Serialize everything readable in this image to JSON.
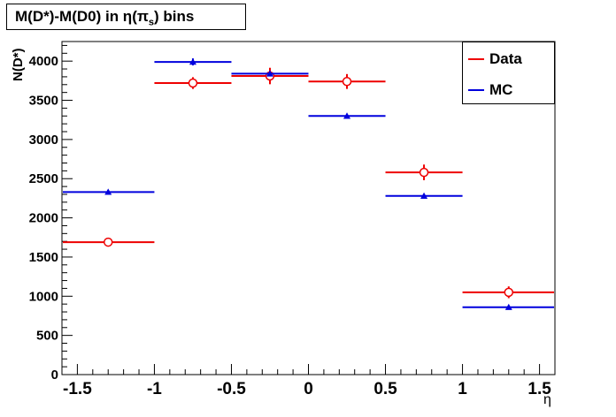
{
  "chart_data": {
    "type": "scatter",
    "title": "M(D*)-M(D0) in  η(πs) bins",
    "title_main": "M(D*)-M(D0) in  η(π",
    "title_sub": "s",
    "title_end": ") bins",
    "xlabel": "η",
    "ylabel": "N(D*)",
    "xlim": [
      -1.6,
      1.6
    ],
    "ylim": [
      0,
      4250
    ],
    "x_ticks": [
      "-1.5",
      "-1",
      "-0.5",
      "0",
      "0.5",
      "1",
      "1.5"
    ],
    "x_tick_values": [
      -1.5,
      -1,
      -0.5,
      0,
      0.5,
      1,
      1.5
    ],
    "y_ticks": [
      "0",
      "500",
      "1000",
      "1500",
      "2000",
      "2500",
      "3000",
      "3500",
      "4000"
    ],
    "y_tick_values": [
      0,
      500,
      1000,
      1500,
      2000,
      2500,
      3000,
      3500,
      4000
    ],
    "legend_position": "top-right",
    "grid": false,
    "series": [
      {
        "name": "Data",
        "color": "#ee0000",
        "marker": "open-circle",
        "bins": [
          [
            -1.6,
            -1.0
          ],
          [
            -1.0,
            -0.5
          ],
          [
            -0.5,
            0.0
          ],
          [
            0.0,
            0.5
          ],
          [
            0.5,
            1.0
          ],
          [
            1.0,
            1.6
          ]
        ],
        "x": [
          -1.3,
          -0.75,
          -0.25,
          0.25,
          0.75,
          1.3
        ],
        "y": [
          1690,
          3720,
          3810,
          3740,
          2580,
          1050
        ],
        "err": [
          45,
          75,
          105,
          95,
          100,
          75
        ]
      },
      {
        "name": "MC",
        "color": "#0000dd",
        "marker": "filled-triangle",
        "bins": [
          [
            -1.6,
            -1.0
          ],
          [
            -1.0,
            -0.5
          ],
          [
            -0.5,
            0.0
          ],
          [
            0.0,
            0.5
          ],
          [
            0.5,
            1.0
          ],
          [
            1.0,
            1.6
          ]
        ],
        "x": [
          -1.3,
          -0.75,
          -0.25,
          0.25,
          0.75,
          1.3
        ],
        "y": [
          2330,
          3990,
          3840,
          3300,
          2280,
          860
        ],
        "err": [
          25,
          45,
          25,
          25,
          20,
          15
        ]
      }
    ]
  }
}
